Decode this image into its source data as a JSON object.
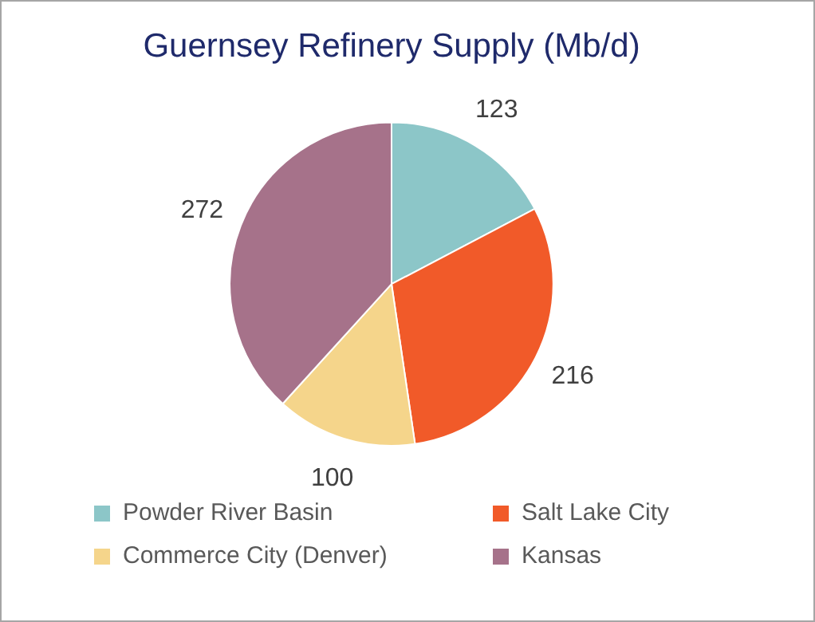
{
  "chart_data": {
    "type": "pie",
    "title": "Guernsey Refinery Supply (Mb/d)",
    "categories": [
      "Powder River Basin",
      "Salt Lake City",
      "Commerce City (Denver)",
      "Kansas"
    ],
    "values": [
      123,
      216,
      100,
      272
    ],
    "colors": [
      "#8cc6c8",
      "#f15a29",
      "#f5d58b",
      "#a6728a"
    ],
    "data_labels": true,
    "legend": "bottom"
  }
}
